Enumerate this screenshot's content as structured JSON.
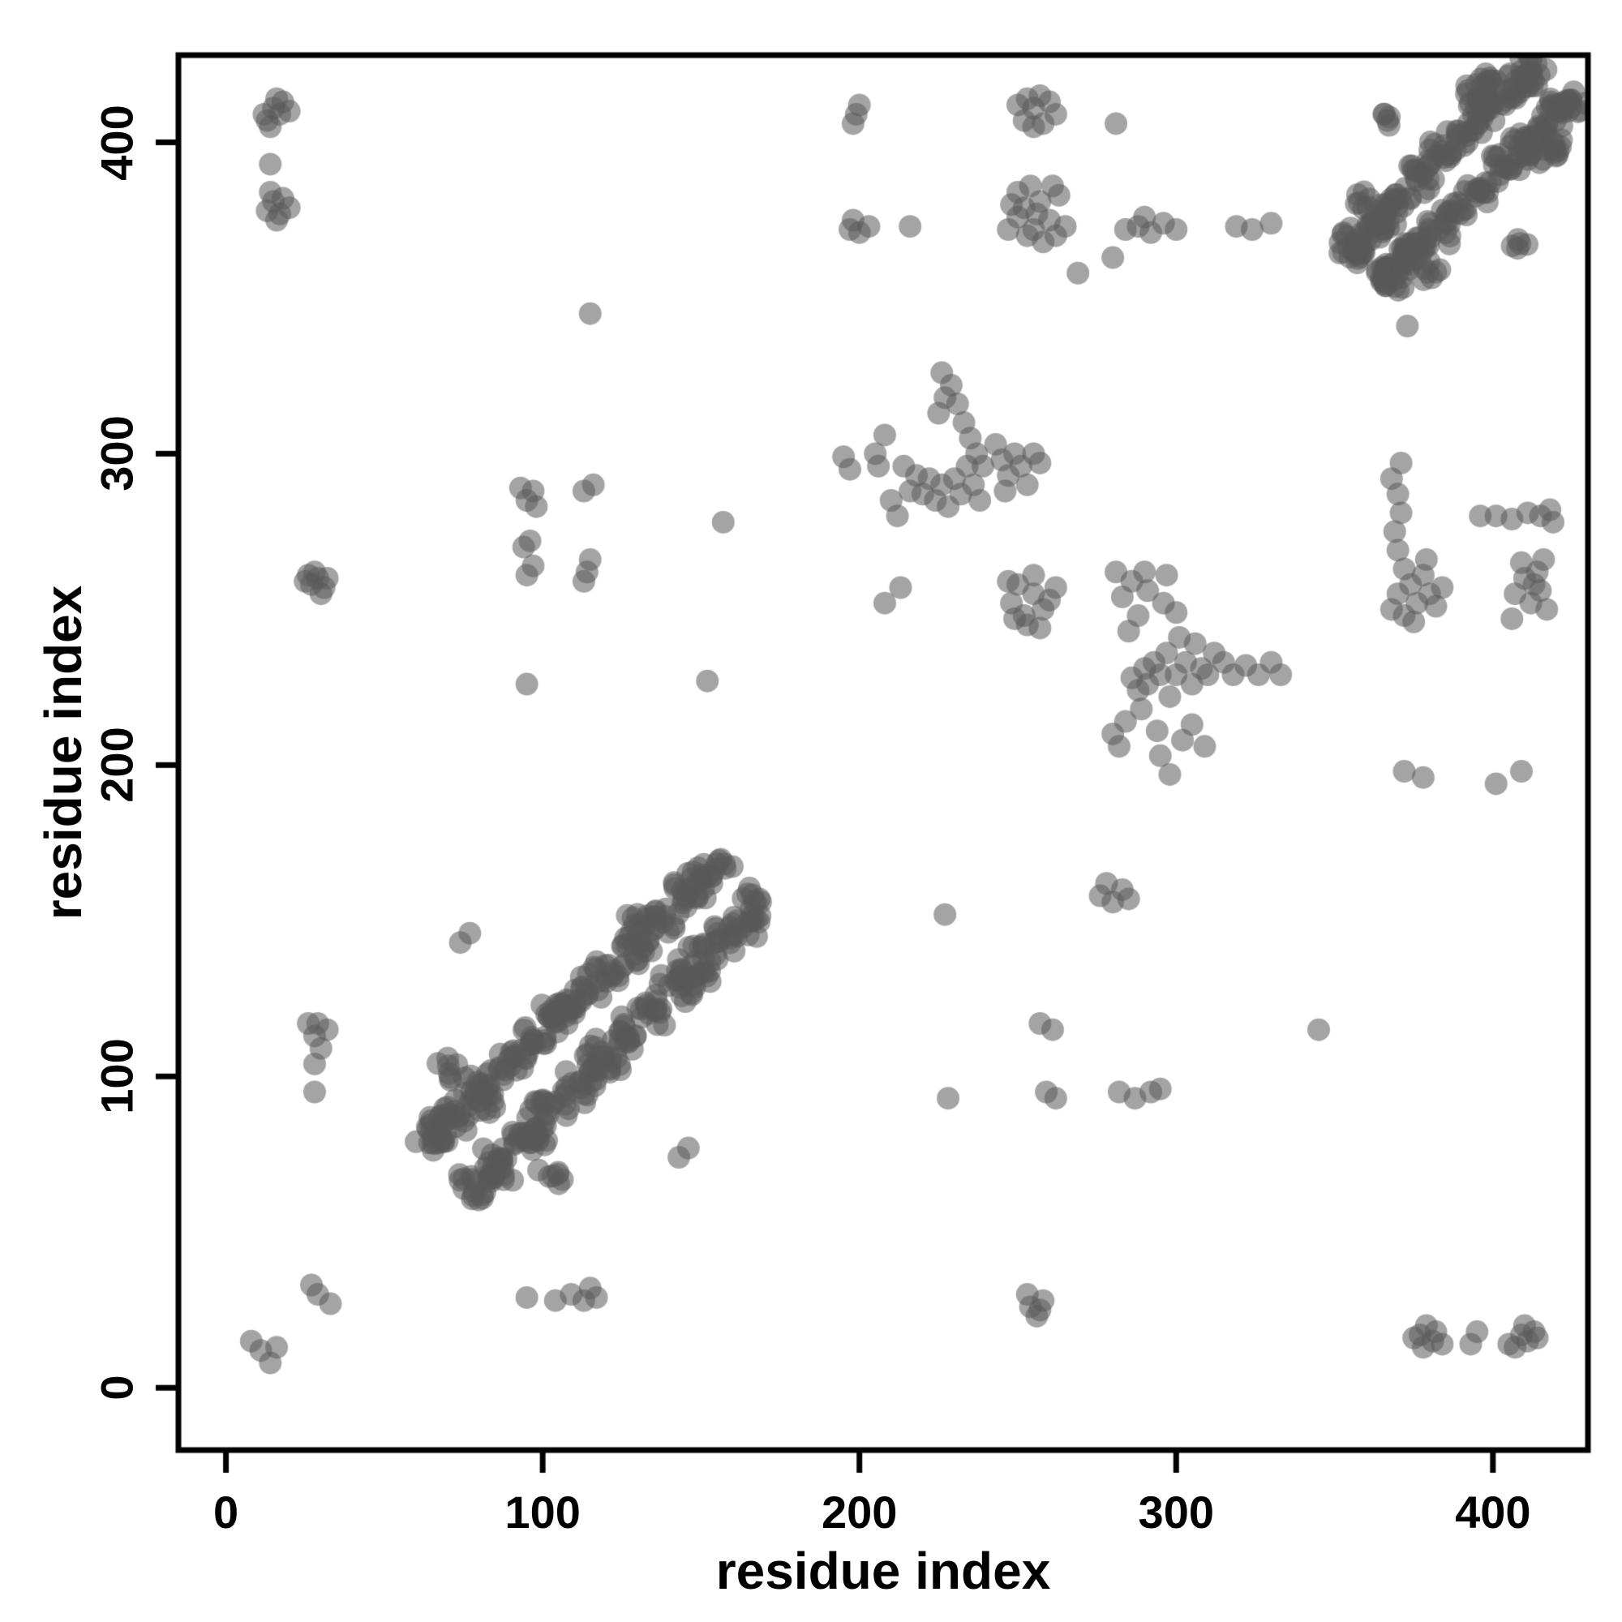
{
  "chart_data": {
    "type": "scatter",
    "title": "",
    "xlabel": "residue index",
    "ylabel": "residue index",
    "xlim": [
      -15,
      430
    ],
    "ylim": [
      -20,
      428
    ],
    "xticks": [
      0,
      100,
      200,
      300,
      400
    ],
    "yticks": [
      0,
      100,
      200,
      300,
      400
    ],
    "grid": false,
    "legend": "none",
    "point_color": "#5a5a5a",
    "point_alpha": 0.55,
    "point_radius_px": 14,
    "axis_color": "#000000",
    "description": "protein residue-residue contact map, symmetric scatter of pairwise contacts",
    "clusters": [
      {
        "x": 79,
        "y": 65,
        "n": 16,
        "s": 7,
        "ad": 1
      },
      {
        "x": 65,
        "y": 79,
        "n": 16,
        "s": 7,
        "ad": 1
      },
      {
        "x": 87,
        "y": 73,
        "n": 16,
        "s": 7,
        "ad": 1
      },
      {
        "x": 73,
        "y": 87,
        "n": 16,
        "s": 7,
        "ad": 1
      },
      {
        "x": 95,
        "y": 81,
        "n": 16,
        "s": 7,
        "ad": 1
      },
      {
        "x": 81,
        "y": 95,
        "n": 16,
        "s": 7,
        "ad": 1
      },
      {
        "x": 103,
        "y": 89,
        "n": 16,
        "s": 7,
        "ad": 1
      },
      {
        "x": 89,
        "y": 103,
        "n": 16,
        "s": 7,
        "ad": 1
      },
      {
        "x": 111,
        "y": 97,
        "n": 16,
        "s": 7,
        "ad": 1
      },
      {
        "x": 97,
        "y": 111,
        "n": 16,
        "s": 7,
        "ad": 1
      },
      {
        "x": 119,
        "y": 105,
        "n": 16,
        "s": 7,
        "ad": 1
      },
      {
        "x": 105,
        "y": 119,
        "n": 16,
        "s": 7,
        "ad": 1
      },
      {
        "x": 127,
        "y": 113,
        "n": 16,
        "s": 7,
        "ad": 1
      },
      {
        "x": 113,
        "y": 127,
        "n": 16,
        "s": 7,
        "ad": 1
      },
      {
        "x": 135,
        "y": 121,
        "n": 16,
        "s": 7,
        "ad": 1
      },
      {
        "x": 121,
        "y": 135,
        "n": 16,
        "s": 7,
        "ad": 1
      },
      {
        "x": 143,
        "y": 129,
        "n": 16,
        "s": 7,
        "ad": 1
      },
      {
        "x": 129,
        "y": 143,
        "n": 16,
        "s": 7,
        "ad": 1
      },
      {
        "x": 151,
        "y": 137,
        "n": 16,
        "s": 7,
        "ad": 1
      },
      {
        "x": 137,
        "y": 151,
        "n": 16,
        "s": 7,
        "ad": 1
      },
      {
        "x": 159,
        "y": 145,
        "n": 16,
        "s": 7,
        "ad": 1
      },
      {
        "x": 145,
        "y": 159,
        "n": 16,
        "s": 7,
        "ad": 1
      },
      {
        "x": 86,
        "y": 67,
        "n": 8,
        "s": 5
      },
      {
        "x": 67,
        "y": 86,
        "n": 8,
        "s": 5
      },
      {
        "x": 103,
        "y": 70,
        "n": 7,
        "s": 5
      },
      {
        "x": 70,
        "y": 103,
        "n": 7,
        "s": 5
      },
      {
        "x": 95,
        "y": 80,
        "n": 12,
        "s": 8,
        "ad": 1
      },
      {
        "x": 80,
        "y": 95,
        "n": 12,
        "s": 8,
        "ad": 1
      },
      {
        "x": 120,
        "y": 107,
        "n": 10,
        "s": 7,
        "ad": 1
      },
      {
        "x": 107,
        "y": 120,
        "n": 10,
        "s": 7,
        "ad": 1
      },
      {
        "x": 148,
        "y": 132,
        "n": 10,
        "s": 7,
        "ad": 1
      },
      {
        "x": 132,
        "y": 148,
        "n": 10,
        "s": 7,
        "ad": 1
      },
      {
        "x": 163,
        "y": 150,
        "n": 14,
        "s": 6,
        "ad": 1
      },
      {
        "x": 150,
        "y": 163,
        "n": 14,
        "s": 6,
        "ad": 1
      },
      {
        "x": 167,
        "y": 157,
        "n": 8,
        "s": 4
      },
      {
        "x": 157,
        "y": 167,
        "n": 8,
        "s": 4
      },
      {
        "x": 368,
        "y": 356,
        "n": 15,
        "s": 6,
        "ad": 1
      },
      {
        "x": 356,
        "y": 368,
        "n": 15,
        "s": 6,
        "ad": 1
      },
      {
        "x": 375,
        "y": 363,
        "n": 15,
        "s": 6,
        "ad": 1
      },
      {
        "x": 363,
        "y": 375,
        "n": 15,
        "s": 6,
        "ad": 1
      },
      {
        "x": 382,
        "y": 370,
        "n": 15,
        "s": 6,
        "ad": 1
      },
      {
        "x": 370,
        "y": 382,
        "n": 15,
        "s": 6,
        "ad": 1
      },
      {
        "x": 389,
        "y": 377,
        "n": 15,
        "s": 6,
        "ad": 1
      },
      {
        "x": 377,
        "y": 389,
        "n": 15,
        "s": 6,
        "ad": 1
      },
      {
        "x": 396,
        "y": 384,
        "n": 15,
        "s": 6,
        "ad": 1
      },
      {
        "x": 384,
        "y": 396,
        "n": 15,
        "s": 6,
        "ad": 1
      },
      {
        "x": 403,
        "y": 391,
        "n": 15,
        "s": 6,
        "ad": 1
      },
      {
        "x": 391,
        "y": 403,
        "n": 15,
        "s": 6,
        "ad": 1
      },
      {
        "x": 410,
        "y": 398,
        "n": 15,
        "s": 6,
        "ad": 1
      },
      {
        "x": 398,
        "y": 410,
        "n": 15,
        "s": 6,
        "ad": 1
      },
      {
        "x": 417,
        "y": 405,
        "n": 15,
        "s": 6,
        "ad": 1
      },
      {
        "x": 405,
        "y": 417,
        "n": 15,
        "s": 6,
        "ad": 1
      },
      {
        "x": 424,
        "y": 412,
        "n": 15,
        "s": 6,
        "ad": 1
      },
      {
        "x": 412,
        "y": 424,
        "n": 15,
        "s": 6,
        "ad": 1
      },
      {
        "x": 366,
        "y": 359,
        "n": 16,
        "s": 5,
        "ad": 1
      },
      {
        "x": 359,
        "y": 366,
        "n": 16,
        "s": 5,
        "ad": 1
      },
      {
        "x": 373,
        "y": 365,
        "n": 16,
        "s": 5,
        "ad": 1
      },
      {
        "x": 365,
        "y": 373,
        "n": 16,
        "s": 5,
        "ad": 1
      },
      {
        "x": 414,
        "y": 396,
        "n": 14,
        "s": 6,
        "ad": 1
      },
      {
        "x": 396,
        "y": 414,
        "n": 14,
        "s": 6,
        "ad": 1
      },
      {
        "x": 420,
        "y": 399,
        "n": 10,
        "s": 4
      },
      {
        "x": 399,
        "y": 420,
        "n": 10,
        "s": 4
      },
      {
        "x": 381,
        "y": 358,
        "n": 6,
        "s": 4
      },
      {
        "x": 358,
        "y": 381,
        "n": 6,
        "s": 4
      },
      {
        "x": 408,
        "y": 368,
        "n": 5,
        "s": 4
      },
      {
        "x": 368,
        "y": 408,
        "n": 5,
        "s": 4
      },
      {
        "x": 419,
        "y": 411,
        "n": 8,
        "s": 4,
        "ad": 1
      },
      {
        "x": 411,
        "y": 419,
        "n": 8,
        "s": 4,
        "ad": 1
      }
    ],
    "points": [
      [
        8,
        15
      ],
      [
        11,
        12
      ],
      [
        14,
        8
      ],
      [
        16,
        13
      ],
      [
        27,
        33
      ],
      [
        29,
        30
      ],
      [
        33,
        27
      ],
      [
        95,
        29
      ],
      [
        104,
        28
      ],
      [
        109,
        30
      ],
      [
        113,
        28
      ],
      [
        115,
        32
      ],
      [
        117,
        29
      ],
      [
        28,
        95
      ],
      [
        28,
        104
      ],
      [
        30,
        109
      ],
      [
        28,
        113
      ],
      [
        32,
        115
      ],
      [
        29,
        117
      ],
      [
        26,
        117
      ],
      [
        13,
        378
      ],
      [
        15,
        381
      ],
      [
        17,
        377
      ],
      [
        14,
        384
      ],
      [
        18,
        382
      ],
      [
        20,
        379
      ],
      [
        16,
        375
      ],
      [
        13,
        407
      ],
      [
        15,
        411
      ],
      [
        17,
        409
      ],
      [
        14,
        405
      ],
      [
        18,
        413
      ],
      [
        20,
        410
      ],
      [
        16,
        414
      ],
      [
        12,
        409
      ],
      [
        14,
        393
      ],
      [
        378,
        13
      ],
      [
        381,
        15
      ],
      [
        377,
        17
      ],
      [
        384,
        14
      ],
      [
        382,
        18
      ],
      [
        379,
        20
      ],
      [
        375,
        16
      ],
      [
        407,
        13
      ],
      [
        411,
        15
      ],
      [
        409,
        17
      ],
      [
        405,
        14
      ],
      [
        413,
        18
      ],
      [
        410,
        20
      ],
      [
        414,
        16
      ],
      [
        395,
        18
      ],
      [
        393,
        14
      ],
      [
        27,
        258
      ],
      [
        29,
        260
      ],
      [
        31,
        257
      ],
      [
        26,
        261
      ],
      [
        30,
        255
      ],
      [
        28,
        262
      ],
      [
        25,
        259
      ],
      [
        32,
        260
      ],
      [
        254,
        26
      ],
      [
        256,
        23
      ],
      [
        258,
        28
      ],
      [
        253,
        30
      ],
      [
        257,
        25
      ],
      [
        95,
        261
      ],
      [
        97,
        264
      ],
      [
        94,
        270
      ],
      [
        96,
        272
      ],
      [
        95,
        285
      ],
      [
        97,
        288
      ],
      [
        93,
        289
      ],
      [
        98,
        283
      ],
      [
        95,
        226
      ],
      [
        259,
        95
      ],
      [
        262,
        93
      ],
      [
        282,
        95
      ],
      [
        287,
        93
      ],
      [
        292,
        95
      ],
      [
        295,
        96
      ],
      [
        228,
        93
      ],
      [
        114,
        262
      ],
      [
        115,
        266
      ],
      [
        113,
        259
      ],
      [
        113,
        288
      ],
      [
        116,
        290
      ],
      [
        115,
        345
      ],
      [
        257,
        117
      ],
      [
        261,
        115
      ],
      [
        345,
        115
      ],
      [
        74,
        143
      ],
      [
        77,
        146
      ],
      [
        143,
        74
      ],
      [
        146,
        77
      ],
      [
        157,
        278
      ],
      [
        276,
        158
      ],
      [
        280,
        156
      ],
      [
        283,
        160
      ],
      [
        278,
        162
      ],
      [
        285,
        157
      ],
      [
        152,
        227
      ],
      [
        227,
        152
      ],
      [
        195,
        299
      ],
      [
        197,
        295
      ],
      [
        205,
        300
      ],
      [
        208,
        306
      ],
      [
        206,
        296
      ],
      [
        210,
        285
      ],
      [
        212,
        280
      ],
      [
        214,
        296
      ],
      [
        216,
        288
      ],
      [
        218,
        293
      ],
      [
        220,
        287
      ],
      [
        222,
        292
      ],
      [
        224,
        285
      ],
      [
        226,
        290
      ],
      [
        228,
        283
      ],
      [
        225,
        313
      ],
      [
        227,
        318
      ],
      [
        229,
        322
      ],
      [
        231,
        316
      ],
      [
        226,
        326
      ],
      [
        233,
        310
      ],
      [
        235,
        305
      ],
      [
        237,
        300
      ],
      [
        239,
        296
      ],
      [
        230,
        292
      ],
      [
        232,
        287
      ],
      [
        234,
        296
      ],
      [
        236,
        290
      ],
      [
        238,
        285
      ],
      [
        243,
        303
      ],
      [
        245,
        298
      ],
      [
        247,
        293
      ],
      [
        249,
        300
      ],
      [
        251,
        296
      ],
      [
        253,
        290
      ],
      [
        255,
        300
      ],
      [
        257,
        297
      ],
      [
        246,
        288
      ],
      [
        208,
        252
      ],
      [
        213,
        257
      ],
      [
        248,
        252
      ],
      [
        252,
        248
      ],
      [
        255,
        255
      ],
      [
        250,
        258
      ],
      [
        258,
        250
      ],
      [
        253,
        245
      ],
      [
        247,
        259
      ],
      [
        260,
        253
      ],
      [
        255,
        261
      ],
      [
        262,
        257
      ],
      [
        249,
        247
      ],
      [
        257,
        244
      ],
      [
        280,
        210
      ],
      [
        282,
        206
      ],
      [
        284,
        214
      ],
      [
        286,
        228
      ],
      [
        288,
        224
      ],
      [
        290,
        231
      ],
      [
        289,
        218
      ],
      [
        291,
        226
      ],
      [
        293,
        233
      ],
      [
        295,
        229
      ],
      [
        294,
        211
      ],
      [
        297,
        236
      ],
      [
        298,
        222
      ],
      [
        300,
        229
      ],
      [
        301,
        241
      ],
      [
        303,
        233
      ],
      [
        305,
        226
      ],
      [
        306,
        239
      ],
      [
        308,
        231
      ],
      [
        310,
        229
      ],
      [
        312,
        236
      ],
      [
        315,
        233
      ],
      [
        318,
        229
      ],
      [
        322,
        232
      ],
      [
        326,
        229
      ],
      [
        330,
        233
      ],
      [
        333,
        229
      ],
      [
        295,
        203
      ],
      [
        298,
        197
      ],
      [
        302,
        208
      ],
      [
        305,
        213
      ],
      [
        309,
        206
      ],
      [
        285,
        243
      ],
      [
        288,
        248
      ],
      [
        283,
        254
      ],
      [
        286,
        259
      ],
      [
        291,
        256
      ],
      [
        296,
        252
      ],
      [
        300,
        249
      ],
      [
        281,
        262
      ],
      [
        290,
        262
      ],
      [
        297,
        261
      ],
      [
        197,
        372
      ],
      [
        200,
        371
      ],
      [
        198,
        375
      ],
      [
        203,
        373
      ],
      [
        216,
        373
      ],
      [
        247,
        372
      ],
      [
        250,
        376
      ],
      [
        252,
        379
      ],
      [
        255,
        372
      ],
      [
        257,
        381
      ],
      [
        260,
        375
      ],
      [
        262,
        370
      ],
      [
        250,
        384
      ],
      [
        254,
        386
      ],
      [
        258,
        368
      ],
      [
        263,
        383
      ],
      [
        248,
        380
      ],
      [
        253,
        370
      ],
      [
        261,
        386
      ],
      [
        265,
        373
      ],
      [
        256,
        377
      ],
      [
        252,
        407
      ],
      [
        255,
        411
      ],
      [
        258,
        406
      ],
      [
        260,
        413
      ],
      [
        262,
        409
      ],
      [
        255,
        405
      ],
      [
        250,
        412
      ],
      [
        257,
        415
      ],
      [
        253,
        414
      ],
      [
        269,
        358
      ],
      [
        280,
        363
      ],
      [
        281,
        406
      ],
      [
        284,
        372
      ],
      [
        288,
        373
      ],
      [
        292,
        371
      ],
      [
        296,
        374
      ],
      [
        300,
        372
      ],
      [
        290,
        376
      ],
      [
        319,
        373
      ],
      [
        324,
        372
      ],
      [
        330,
        374
      ],
      [
        198,
        406
      ],
      [
        200,
        412
      ],
      [
        199,
        409
      ],
      [
        368,
        250
      ],
      [
        370,
        255
      ],
      [
        372,
        248
      ],
      [
        374,
        258
      ],
      [
        376,
        252
      ],
      [
        378,
        261
      ],
      [
        380,
        255
      ],
      [
        372,
        263
      ],
      [
        375,
        246
      ],
      [
        382,
        251
      ],
      [
        384,
        257
      ],
      [
        379,
        266
      ],
      [
        370,
        269
      ],
      [
        369,
        275
      ],
      [
        371,
        281
      ],
      [
        370,
        287
      ],
      [
        368,
        292
      ],
      [
        371,
        297
      ],
      [
        407,
        255
      ],
      [
        410,
        260
      ],
      [
        412,
        252
      ],
      [
        414,
        262
      ],
      [
        415,
        256
      ],
      [
        417,
        250
      ],
      [
        409,
        265
      ],
      [
        413,
        258
      ],
      [
        416,
        266
      ],
      [
        406,
        247
      ],
      [
        372,
        198
      ],
      [
        378,
        196
      ],
      [
        401,
        194
      ],
      [
        409,
        198
      ],
      [
        396,
        280
      ],
      [
        401,
        280
      ],
      [
        406,
        279
      ],
      [
        411,
        281
      ],
      [
        415,
        280
      ],
      [
        419,
        278
      ],
      [
        418,
        282
      ],
      [
        373,
        341
      ]
    ]
  }
}
